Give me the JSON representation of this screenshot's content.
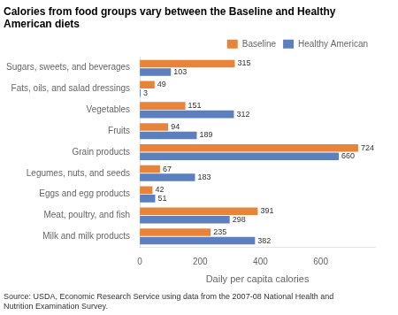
{
  "chart_data": {
    "type": "bar",
    "orientation": "horizontal",
    "title": "Calories from food groups vary between the Baseline and Healthy American diets",
    "categories": [
      "Sugars, sweets, and beverages",
      "Fats, oils, and salad dressings",
      "Vegetables",
      "Fruits",
      "Grain products",
      "Legumes, nuts, and seeds",
      "Eggs and egg products",
      "Meat, poultry, and fish",
      "Milk and milk products"
    ],
    "series": [
      {
        "name": "Baseline",
        "color": "#E8833A",
        "values": [
          315,
          49,
          151,
          94,
          724,
          67,
          42,
          391,
          235
        ]
      },
      {
        "name": "Healthy American",
        "color": "#5B7FBF",
        "values": [
          103,
          3,
          312,
          189,
          660,
          183,
          51,
          298,
          382
        ]
      }
    ],
    "xlabel": "Daily per capita calories",
    "xlim": [
      0,
      780
    ],
    "xticks": [
      0,
      200,
      400,
      600
    ],
    "annotations": [
      "Source: USDA, Economic Research Service using data from the 2007-08 National Health and\nNutrition Examination Survey."
    ],
    "data_labels": true,
    "legend": "upper right",
    "grid": false
  }
}
